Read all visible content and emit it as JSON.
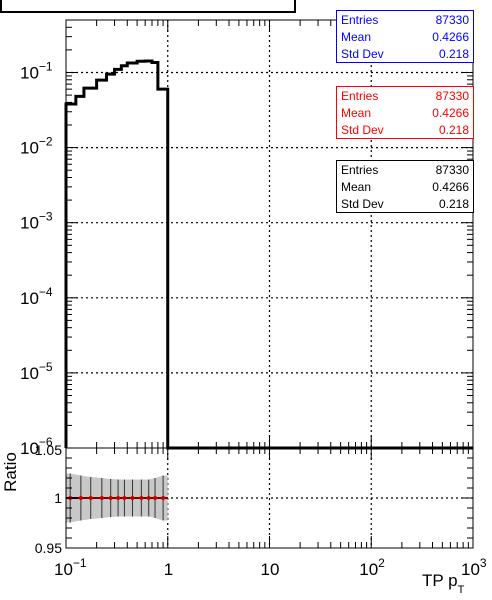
{
  "chart_data": {
    "type": "line",
    "x_scale": "log",
    "xlim": [
      0.1,
      1000
    ],
    "xlabel": "TP p",
    "xlabel_subscript": "T",
    "x_ticks": [
      "10",
      "1",
      "10",
      "10",
      "10"
    ],
    "x_tick_exponents": [
      "−1",
      "",
      "",
      "2",
      "3"
    ],
    "grid": true,
    "top_panel": {
      "y_scale": "log",
      "ylim": [
        1e-06,
        0.5
      ],
      "y_ticks": [
        "10",
        "10",
        "10",
        "10",
        "10",
        "10"
      ],
      "y_tick_exponents": [
        "−1",
        "−2",
        "−3",
        "−4",
        "−5",
        "−6"
      ],
      "series": [
        {
          "color": "#000000",
          "bin_edges": [
            0.1,
            0.125,
            0.15,
            0.2,
            0.25,
            0.3,
            0.35,
            0.4,
            0.5,
            0.6,
            0.7,
            0.8,
            1.0,
            1000
          ],
          "values": [
            0.038,
            0.048,
            0.062,
            0.079,
            0.095,
            0.11,
            0.123,
            0.134,
            0.141,
            0.142,
            0.136,
            0.06,
            1e-06
          ]
        }
      ]
    },
    "ratio_panel": {
      "ylabel": "Ratio",
      "ylim": [
        0.95,
        1.05
      ],
      "y_tick_labels": [
        "0.95",
        "1",
        "1.05"
      ],
      "points": {
        "x": [
          0.11,
          0.14,
          0.175,
          0.225,
          0.275,
          0.325,
          0.375,
          0.45,
          0.55,
          0.65,
          0.75,
          0.9
        ],
        "y": [
          1,
          1,
          1,
          1,
          1,
          1,
          1,
          1,
          1,
          1,
          1,
          1
        ],
        "err": [
          0.0245,
          0.0225,
          0.021,
          0.02,
          0.019,
          0.0185,
          0.0185,
          0.0185,
          0.0185,
          0.0185,
          0.02,
          0.0225
        ],
        "color": "#cc0000"
      },
      "band_color": "#c8c8c8",
      "line_y": 1
    },
    "stats_boxes": [
      {
        "color": "#0000ff",
        "entries_label": "Entries",
        "entries": "87330",
        "mean_label": "Mean",
        "mean": "0.4266",
        "std_label": "Std Dev",
        "std": "0.218"
      },
      {
        "color": "#ff0000",
        "entries_label": "Entries",
        "entries": "87330",
        "mean_label": "Mean",
        "mean": "0.4266",
        "std_label": "Std Dev",
        "std": "0.218"
      },
      {
        "color": "#000000",
        "entries_label": "Entries",
        "entries": "87330",
        "mean_label": "Mean",
        "mean": "0.4266",
        "std_label": "Std Dev",
        "std": "0.218"
      }
    ]
  }
}
